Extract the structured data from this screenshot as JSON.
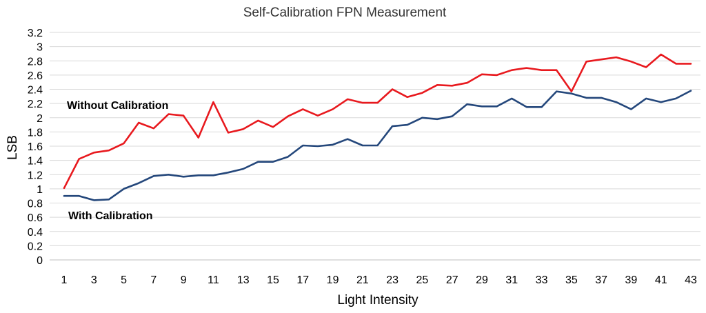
{
  "chart_data": {
    "type": "line",
    "title": "Self-Calibration FPN Measurement",
    "xlabel": "Light Intensity",
    "ylabel": "LSB",
    "ylim": [
      0,
      3.2
    ],
    "yticks": [
      "0",
      "0.2",
      "0.4",
      "0.6",
      "0.8",
      "1",
      "1.2",
      "1.4",
      "1.6",
      "1.8",
      "2",
      "2.2",
      "2.4",
      "2.6",
      "2.8",
      "3",
      "3.2"
    ],
    "xticks": [
      "1",
      "3",
      "5",
      "7",
      "9",
      "11",
      "13",
      "15",
      "17",
      "19",
      "21",
      "23",
      "25",
      "27",
      "29",
      "31",
      "33",
      "35",
      "37",
      "39",
      "41",
      "43"
    ],
    "grid": true,
    "x": [
      1,
      2,
      3,
      4,
      5,
      6,
      7,
      8,
      9,
      10,
      11,
      12,
      13,
      14,
      15,
      16,
      17,
      18,
      19,
      20,
      21,
      22,
      23,
      24,
      25,
      26,
      27,
      28,
      29,
      30,
      31,
      32,
      33,
      34,
      35,
      36,
      37,
      38,
      39,
      40,
      41,
      42,
      43
    ],
    "series": [
      {
        "color": "#e8191e",
        "values": [
          1.01,
          1.42,
          1.51,
          1.54,
          1.64,
          1.93,
          1.85,
          2.05,
          2.03,
          1.72,
          2.22,
          1.79,
          1.84,
          1.96,
          1.87,
          2.02,
          2.12,
          2.03,
          2.12,
          2.26,
          2.21,
          2.21,
          2.4,
          2.29,
          2.35,
          2.46,
          2.45,
          2.49,
          2.61,
          2.6,
          2.67,
          2.7,
          2.67,
          2.67,
          2.37,
          2.79,
          2.82,
          2.85,
          2.79,
          2.71,
          2.89,
          2.76,
          2.76
        ]
      },
      {
        "color": "#24477b",
        "values": [
          0.9,
          0.9,
          0.84,
          0.85,
          1.0,
          1.08,
          1.18,
          1.2,
          1.17,
          1.19,
          1.19,
          1.23,
          1.28,
          1.38,
          1.38,
          1.45,
          1.61,
          1.6,
          1.62,
          1.7,
          1.61,
          1.61,
          1.88,
          1.9,
          2.0,
          1.98,
          2.02,
          2.19,
          2.16,
          2.16,
          2.27,
          2.15,
          2.15,
          2.37,
          2.34,
          2.28,
          2.28,
          2.22,
          2.12,
          2.27,
          2.22,
          2.27,
          2.38
        ]
      }
    ],
    "annotations": [
      {
        "text": "Without Calibration"
      },
      {
        "text": "With Calibration"
      }
    ]
  }
}
